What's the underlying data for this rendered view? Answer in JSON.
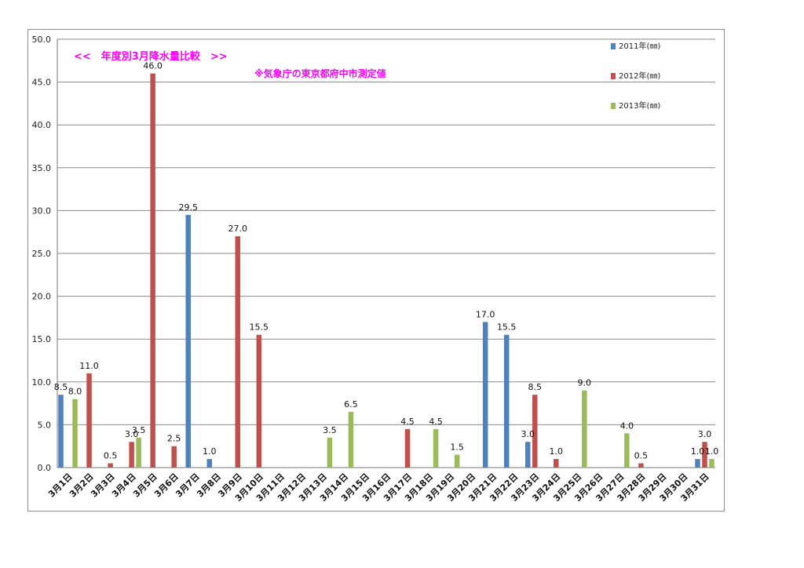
{
  "chart_data": {
    "type": "bar",
    "title": "<<　年度別3月降水量比較　>>",
    "subtitle": "※気象庁の東京都府中市測定値",
    "ylim": [
      0,
      50
    ],
    "y_ticks": [
      "0.0",
      "5.0",
      "10.0",
      "15.0",
      "20.0",
      "25.0",
      "30.0",
      "35.0",
      "40.0",
      "45.0",
      "50.0"
    ],
    "grid": "horizontal",
    "legend_position": "top-right",
    "categories": [
      "3月1日",
      "3月2日",
      "3月3日",
      "3月4日",
      "3月5日",
      "3月6日",
      "3月7日",
      "3月8日",
      "3月9日",
      "3月10日",
      "3月11日",
      "3月12日",
      "3月13日",
      "3月14日",
      "3月15日",
      "3月16日",
      "3月17日",
      "3月18日",
      "3月19日",
      "3月20日",
      "3月21日",
      "3月22日",
      "3月23日",
      "3月24日",
      "3月25日",
      "3月26日",
      "3月27日",
      "3月28日",
      "3月29日",
      "3月30日",
      "3月31日"
    ],
    "series": [
      {
        "name": "2011年(㎜)",
        "color": "#4f81bd",
        "values": [
          8.5,
          0,
          0,
          0,
          0,
          0,
          29.5,
          1.0,
          0,
          0,
          0,
          0,
          0,
          0,
          0,
          0,
          0,
          0,
          0,
          0,
          17.0,
          15.5,
          3.0,
          0,
          0,
          0,
          0,
          0,
          0,
          0,
          1.0
        ]
      },
      {
        "name": "2012年(㎜)",
        "color": "#c0504d",
        "values": [
          0,
          11.0,
          0.5,
          3.0,
          46.0,
          2.5,
          0,
          0,
          27.0,
          15.5,
          0,
          0,
          0,
          0,
          0,
          0,
          4.5,
          0,
          0,
          0,
          0,
          0,
          8.5,
          1.0,
          0,
          0,
          0,
          0.5,
          0,
          0,
          3.0
        ]
      },
      {
        "name": "2013年(㎜)",
        "color": "#9bbb59",
        "values": [
          8.0,
          0,
          0,
          3.5,
          0,
          0,
          0,
          0,
          0,
          0,
          0,
          0,
          3.5,
          6.5,
          0,
          0,
          0,
          4.5,
          1.5,
          0,
          0,
          0,
          0,
          0,
          9.0,
          0,
          4.0,
          0,
          0,
          0,
          1.0
        ]
      }
    ]
  }
}
